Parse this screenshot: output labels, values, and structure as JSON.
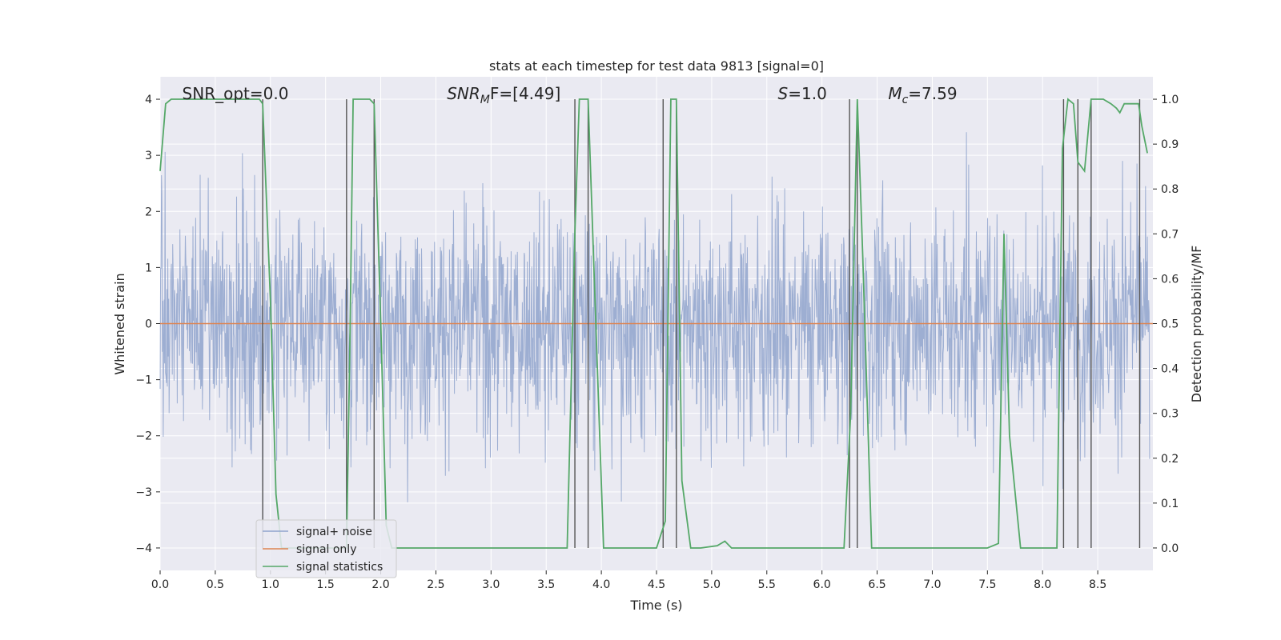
{
  "chart_data": {
    "type": "line",
    "title": "stats at each timestep for test data 9813 [signal=0]",
    "xlabel": "Time (s)",
    "ylabel": "Whitened strain",
    "y2label": "Detection probability/MF",
    "xlim": [
      0.0,
      9.0
    ],
    "ylim": [
      -4.4,
      4.4
    ],
    "y2lim": [
      -0.05,
      1.05
    ],
    "x_ticks": [
      0.0,
      0.5,
      1.0,
      1.5,
      2.0,
      2.5,
      3.0,
      3.5,
      4.0,
      4.5,
      5.0,
      5.5,
      6.0,
      6.5,
      7.0,
      7.5,
      8.0,
      8.5
    ],
    "y_ticks": [
      -4,
      -3,
      -2,
      -1,
      0,
      1,
      2,
      3,
      4
    ],
    "y2_ticks": [
      0.0,
      0.1,
      0.2,
      0.3,
      0.4,
      0.5,
      0.6,
      0.7,
      0.8,
      0.9,
      1.0
    ],
    "grid": true,
    "legend_position": "lower-left",
    "colors": {
      "noise": "#8fa3cc",
      "signal": "#dd8452",
      "stats": "#55a868",
      "vlines": "#555555",
      "plot_bg": "#eaeaf2",
      "grid": "#ffffff"
    },
    "annotations": [
      {
        "id": "snr-opt",
        "text": "SNR_opt=0.0",
        "x": 0.2
      },
      {
        "id": "snr-mf",
        "base": "SNR",
        "sub": "M",
        "rest": "F=[4.49]",
        "x": 2.6
      },
      {
        "id": "s",
        "base": "S",
        "rest": "=1.0",
        "x": 5.6
      },
      {
        "id": "mc",
        "base": "M",
        "sub": "c",
        "rest": "=7.59",
        "x": 6.6
      }
    ],
    "series": [
      {
        "name": "signal+ noise",
        "kind": "noise-band",
        "x_range": [
          0.0,
          8.97
        ],
        "approx_sigma": 1.0,
        "peak_range": [
          -3.9,
          3.75
        ]
      },
      {
        "name": "signal only",
        "kind": "constant",
        "value": 0.0
      },
      {
        "name": "signal statistics",
        "axis": "y2",
        "x": [
          0.0,
          0.05,
          0.1,
          0.2,
          0.3,
          0.4,
          0.5,
          0.6,
          0.7,
          0.8,
          0.9,
          0.93,
          1.0,
          1.05,
          1.1,
          1.15,
          1.2,
          1.3,
          1.4,
          1.5,
          1.6,
          1.69,
          1.72,
          1.75,
          1.8,
          1.9,
          1.94,
          2.0,
          2.05,
          2.1,
          2.2,
          2.5,
          3.0,
          3.5,
          3.69,
          3.76,
          3.8,
          3.85,
          3.88,
          3.95,
          4.02,
          4.1,
          4.5,
          4.58,
          4.63,
          4.66,
          4.68,
          4.73,
          4.81,
          4.9,
          5.05,
          5.12,
          5.18,
          5.3,
          6.0,
          6.2,
          6.26,
          6.32,
          6.37,
          6.45,
          6.6,
          7.0,
          7.5,
          7.6,
          7.65,
          7.7,
          7.8,
          7.95,
          8.05,
          8.13,
          8.18,
          8.23,
          8.28,
          8.32,
          8.38,
          8.44,
          8.5,
          8.55,
          8.62,
          8.67,
          8.7,
          8.74,
          8.78,
          8.83,
          8.87,
          8.9,
          8.95
        ],
        "values": [
          0.84,
          0.99,
          1.0,
          1.0,
          1.0,
          1.0,
          1.0,
          1.0,
          1.0,
          1.0,
          1.0,
          0.99,
          0.55,
          0.12,
          0.0,
          0.0,
          0.0,
          0.0,
          0.0,
          0.0,
          0.0,
          0.0,
          0.45,
          1.0,
          1.0,
          1.0,
          0.99,
          0.5,
          0.05,
          0.0,
          0.0,
          0.0,
          0.0,
          0.0,
          0.0,
          0.7,
          1.0,
          1.0,
          1.0,
          0.5,
          0.0,
          0.0,
          0.0,
          0.06,
          1.0,
          1.0,
          1.0,
          0.15,
          0.0,
          0.0,
          0.005,
          0.015,
          0.0,
          0.0,
          0.0,
          0.0,
          0.3,
          1.0,
          0.65,
          0.0,
          0.0,
          0.0,
          0.0,
          0.01,
          0.7,
          0.25,
          0.0,
          0.0,
          0.0,
          0.0,
          0.89,
          1.0,
          0.99,
          0.86,
          0.84,
          1.0,
          1.0,
          1.0,
          0.99,
          0.98,
          0.97,
          0.99,
          0.99,
          0.99,
          0.99,
          0.94,
          0.88
        ]
      }
    ],
    "vlines": [
      0.93,
      1.69,
      1.94,
      3.76,
      3.88,
      4.56,
      4.68,
      6.25,
      6.32,
      8.19,
      8.32,
      8.44,
      8.88
    ]
  }
}
